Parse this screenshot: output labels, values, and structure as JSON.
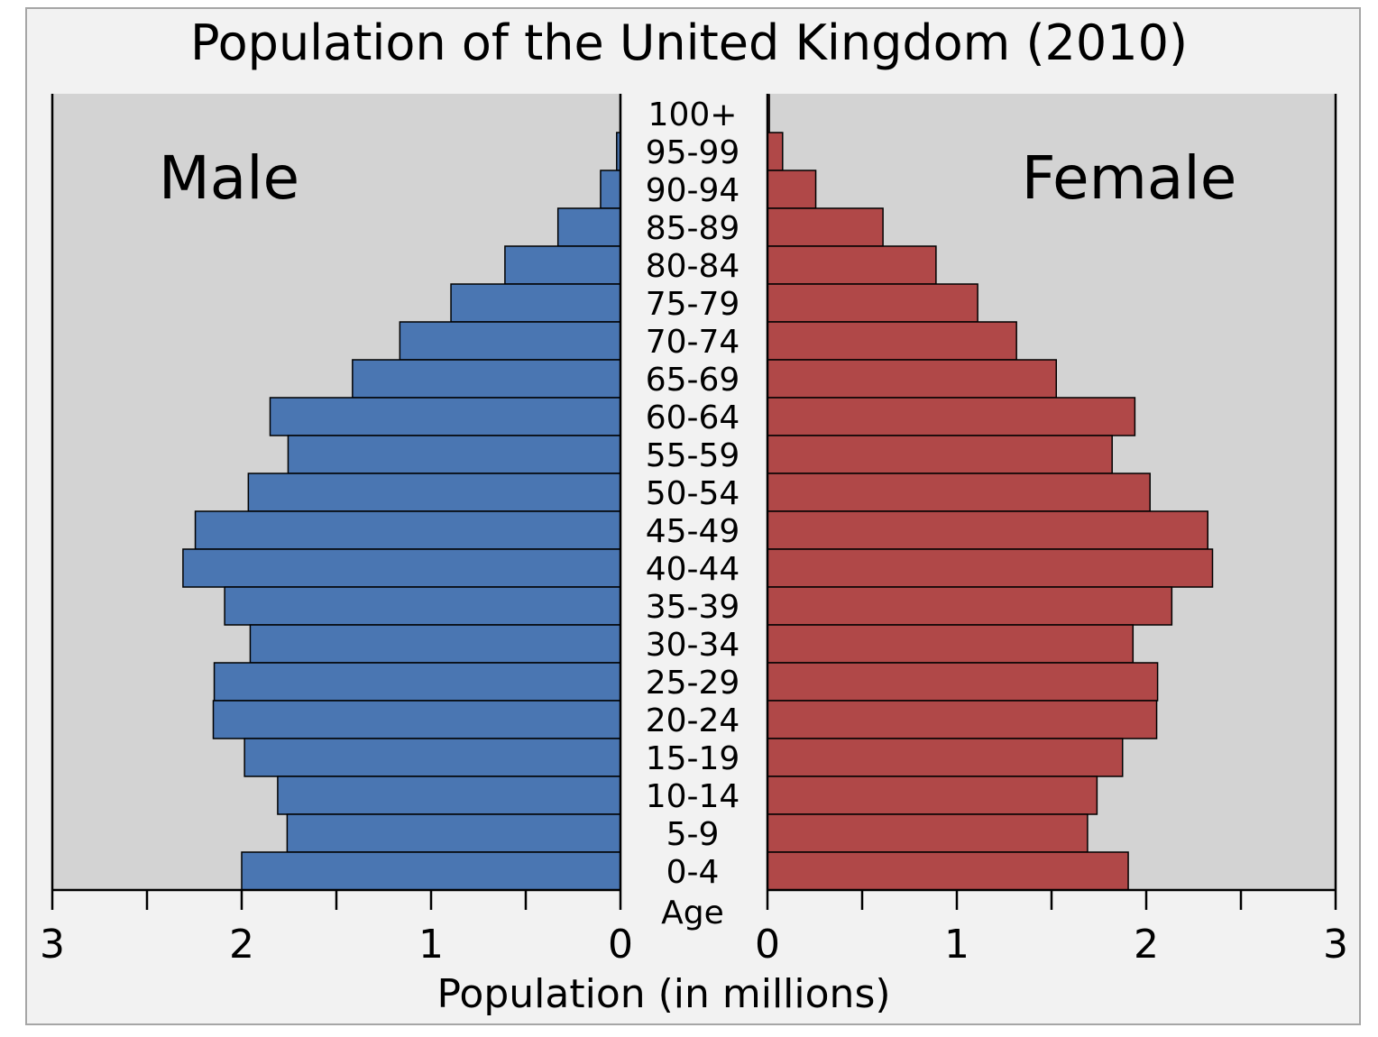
{
  "chart_data": {
    "type": "bar",
    "orientation": "horizontal",
    "layout": "population-pyramid",
    "title": "Population of the United Kingdom (2010)",
    "xlabel": "Population (in millions)",
    "ylabel": "Age",
    "xlim": [
      0,
      3
    ],
    "x_ticks": [
      "0",
      "1",
      "2",
      "3"
    ],
    "grid": false,
    "categories": [
      "100+",
      "95-99",
      "90-94",
      "85-89",
      "80-84",
      "75-79",
      "70-74",
      "65-69",
      "60-64",
      "55-59",
      "50-54",
      "45-49",
      "40-44",
      "35-39",
      "30-34",
      "25-29",
      "20-24",
      "15-19",
      "10-14",
      "5-9",
      "0-4"
    ],
    "series": [
      {
        "name": "Male",
        "side": "left",
        "color": "#4a76b2",
        "values": [
          0.002,
          0.02,
          0.105,
          0.33,
          0.61,
          0.895,
          1.165,
          1.415,
          1.85,
          1.755,
          1.965,
          2.245,
          2.31,
          2.09,
          1.955,
          2.145,
          2.15,
          1.985,
          1.81,
          1.76,
          2.0
        ]
      },
      {
        "name": "Female",
        "side": "right",
        "color": "#b04848",
        "values": [
          0.01,
          0.08,
          0.255,
          0.61,
          0.89,
          1.11,
          1.315,
          1.525,
          1.94,
          1.82,
          2.02,
          2.325,
          2.35,
          2.135,
          1.93,
          2.06,
          2.055,
          1.875,
          1.74,
          1.69,
          1.905
        ]
      }
    ]
  },
  "colors": {
    "frame_background": "#f2f2f2",
    "frame_border": "#a6a6a6",
    "plot_background": "#d3d3d3",
    "bar_outline": "#000000"
  }
}
